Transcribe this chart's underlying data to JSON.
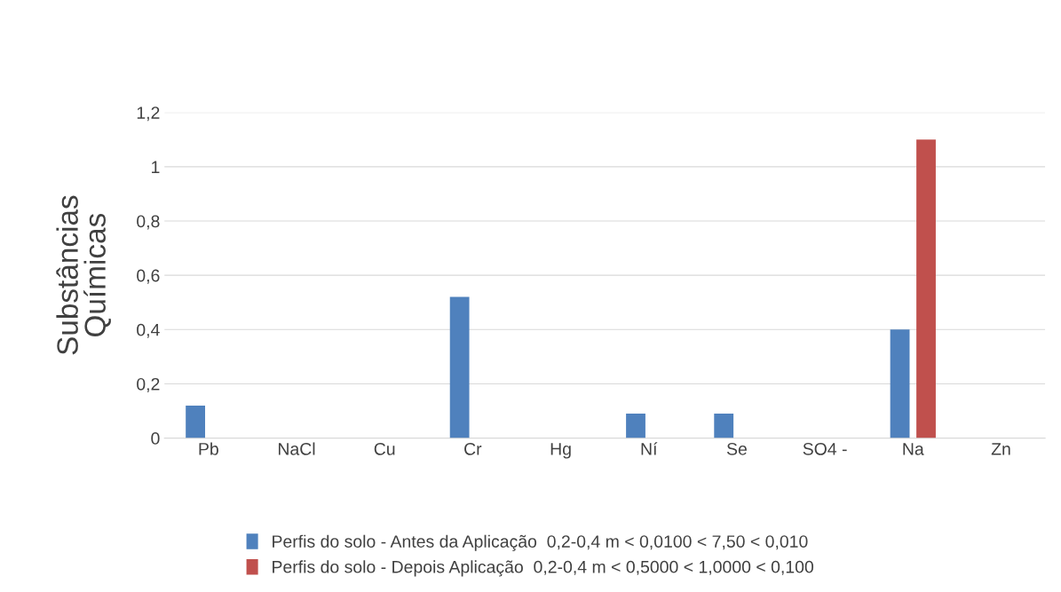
{
  "chart_data": {
    "type": "bar",
    "ylabel": "Substâncias\nQuímicas",
    "categories": [
      "Pb",
      "NaCl",
      "Cu",
      "Cr",
      "Hg",
      "Ní",
      "Se",
      "SO4 -",
      "Na",
      "Zn"
    ],
    "series": [
      {
        "name": "Perfis do solo - Antes da Aplicação  0,2-0,4 m < 0,0100 < 7,50 < 0,010",
        "color": "#4f81bd",
        "values": [
          0.12,
          null,
          null,
          0.52,
          null,
          0.09,
          0.09,
          null,
          0.4,
          null
        ]
      },
      {
        "name": "Perfis do solo - Depois Aplicação  0,2-0,4 m < 0,5000 < 1,0000 < 0,100",
        "color": "#c0504d",
        "values": [
          null,
          null,
          null,
          null,
          null,
          null,
          null,
          null,
          1.1,
          null
        ]
      }
    ],
    "ylim": [
      0,
      1.2
    ],
    "yticks": [
      {
        "value": 0,
        "label": "0"
      },
      {
        "value": 0.2,
        "label": "0,2"
      },
      {
        "value": 0.4,
        "label": "0,4"
      },
      {
        "value": 0.6,
        "label": "0,6"
      },
      {
        "value": 0.8,
        "label": "0,8"
      },
      {
        "value": 1,
        "label": "1"
      },
      {
        "value": 1.2,
        "label": "1,2"
      }
    ],
    "grid": "y",
    "legend": "bottom"
  }
}
